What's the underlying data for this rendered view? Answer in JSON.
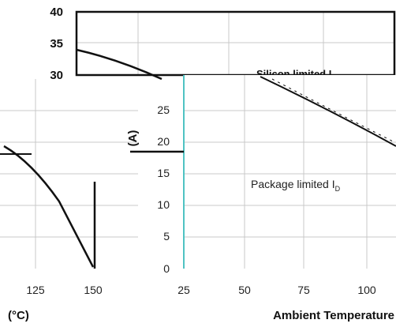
{
  "chart_data": [
    {
      "type": "line",
      "title": "",
      "xlabel": "",
      "ylabel": "",
      "ylim": [
        0,
        40
      ],
      "yticks": [
        "40",
        "35",
        "30"
      ],
      "grid": true,
      "series": [
        {
          "x": [
            25,
            50,
            75
          ],
          "y": [
            34,
            32,
            29
          ]
        }
      ],
      "annotations": [
        "Silicon limited I"
      ]
    },
    {
      "type": "line",
      "title": "",
      "xlabel": "(°C)",
      "ylabel": "",
      "xlim": [
        100,
        150
      ],
      "ylim": [
        0,
        20
      ],
      "xticks": [
        "125",
        "150"
      ],
      "grid": true,
      "series": [
        {
          "x": [
            100,
            125,
            150
          ],
          "y": [
            14,
            12,
            0
          ]
        }
      ]
    },
    {
      "type": "line",
      "title": "",
      "xlabel": "Ambient Temperature",
      "ylabel": "(A)",
      "xlim": [
        25,
        110
      ],
      "ylim": [
        0,
        30
      ],
      "xticks": [
        "25",
        "50",
        "75",
        "100"
      ],
      "yticks": [
        "0",
        "5",
        "10",
        "15",
        "20",
        "25"
      ],
      "grid": true,
      "series": [
        {
          "x": [
            75,
            100,
            110
          ],
          "y": [
            30,
            23,
            20
          ]
        }
      ],
      "annotations": [
        "Package limited I",
        "D"
      ]
    }
  ],
  "colors": {
    "curve": "#111111",
    "grid": "#c8c8c8",
    "axis_accent": "#4fc3c3"
  }
}
